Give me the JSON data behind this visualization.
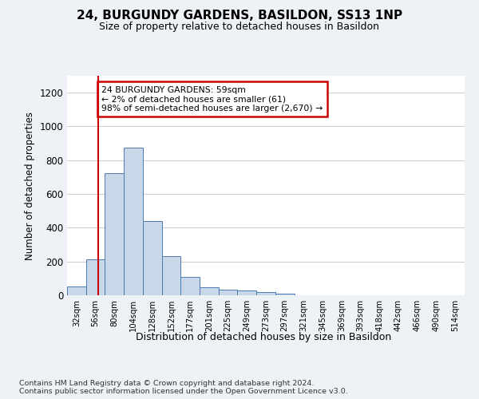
{
  "title_line1": "24, BURGUNDY GARDENS, BASILDON, SS13 1NP",
  "title_line2": "Size of property relative to detached houses in Basildon",
  "xlabel": "Distribution of detached houses by size in Basildon",
  "ylabel": "Number of detached properties",
  "bar_labels": [
    "32sqm",
    "56sqm",
    "80sqm",
    "104sqm",
    "128sqm",
    "152sqm",
    "177sqm",
    "201sqm",
    "225sqm",
    "249sqm",
    "273sqm",
    "297sqm",
    "321sqm",
    "345sqm",
    "369sqm",
    "393sqm",
    "418sqm",
    "442sqm",
    "466sqm",
    "490sqm",
    "514sqm"
  ],
  "bar_values": [
    50,
    215,
    725,
    875,
    440,
    230,
    108,
    47,
    35,
    27,
    18,
    10,
    0,
    0,
    0,
    0,
    0,
    0,
    0,
    0,
    0
  ],
  "bar_color": "#c8d8e8",
  "bar_edge_color": "#4a7ab5",
  "vline_x": 1.125,
  "vline_color": "#cc0000",
  "annotation_text": "24 BURGUNDY GARDENS: 59sqm\n← 2% of detached houses are smaller (61)\n98% of semi-detached houses are larger (2,670) →",
  "annotation_box_color": "#cc0000",
  "ylim": [
    0,
    1300
  ],
  "yticks": [
    0,
    200,
    400,
    600,
    800,
    1000,
    1200
  ],
  "footer_text": "Contains HM Land Registry data © Crown copyright and database right 2024.\nContains public sector information licensed under the Open Government Licence v3.0.",
  "bg_color": "#eef2f7",
  "plot_bg_color": "#ffffff",
  "grid_color": "#cccccc"
}
